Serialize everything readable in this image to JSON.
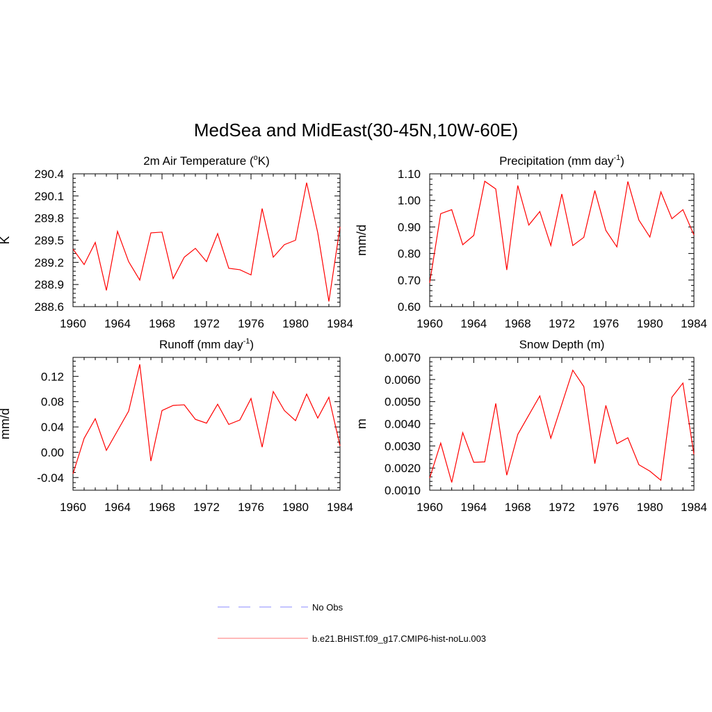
{
  "main_title": "MedSea and MidEast(30-45N,10W-60E)",
  "colors": {
    "model": "#ff0000",
    "obs": "#a0a0ff",
    "axis": "#000000"
  },
  "legend": {
    "items": [
      {
        "label": "No Obs",
        "style": "dashed",
        "color": "#a0a0ff"
      },
      {
        "label": "b.e21.BHIST.f09_g17.CMIP6-hist-noLu.003",
        "style": "solid",
        "color": "#ff0000"
      }
    ]
  },
  "chart_data": [
    {
      "type": "line",
      "title": "2m Air Temperature (°K)",
      "title_parts": {
        "pre": "2m Air Temperature (",
        "sup": "o",
        "post": "K)"
      },
      "ylabel": "K",
      "xlim": [
        1960,
        1984
      ],
      "ylim": [
        288.6,
        290.4
      ],
      "x_ticks": [
        "1960",
        "1964",
        "1968",
        "1972",
        "1976",
        "1980",
        "1984"
      ],
      "y_ticks": [
        "288.6",
        "288.9",
        "289.2",
        "289.5",
        "289.8",
        "290.1",
        "290.4"
      ],
      "series": [
        {
          "x": [
            1960,
            1961,
            1962,
            1963,
            1964,
            1965,
            1966,
            1967,
            1968,
            1969,
            1970,
            1971,
            1972,
            1973,
            1974,
            1975,
            1976,
            1977,
            1978,
            1979,
            1980,
            1981,
            1982,
            1983,
            1984
          ],
          "values": [
            289.38,
            289.17,
            289.47,
            288.82,
            289.62,
            289.21,
            288.96,
            289.6,
            289.61,
            288.98,
            289.27,
            289.39,
            289.21,
            289.59,
            289.12,
            289.1,
            289.03,
            289.93,
            289.27,
            289.44,
            289.5,
            290.28,
            289.6,
            288.67,
            289.68
          ]
        }
      ]
    },
    {
      "type": "line",
      "title": "Precipitation (mm day-1)",
      "title_parts": {
        "pre": "Precipitation (mm day",
        "sup": "-1",
        "post": ")"
      },
      "ylabel": "mm/d",
      "xlim": [
        1960,
        1984
      ],
      "ylim": [
        0.6,
        1.1
      ],
      "x_ticks": [
        "1960",
        "1964",
        "1968",
        "1972",
        "1976",
        "1980",
        "1984"
      ],
      "y_ticks": [
        "0.60",
        "0.70",
        "0.80",
        "0.90",
        "1.00",
        "1.10"
      ],
      "series": [
        {
          "x": [
            1960,
            1961,
            1962,
            1963,
            1964,
            1965,
            1966,
            1967,
            1968,
            1969,
            1970,
            1971,
            1972,
            1973,
            1974,
            1975,
            1976,
            1977,
            1978,
            1979,
            1980,
            1981,
            1982,
            1983,
            1984
          ],
          "values": [
            0.69,
            0.95,
            0.965,
            0.833,
            0.868,
            1.072,
            1.043,
            0.738,
            1.056,
            0.907,
            0.958,
            0.83,
            1.024,
            0.83,
            0.861,
            1.037,
            0.887,
            0.825,
            1.071,
            0.926,
            0.862,
            1.032,
            0.931,
            0.965,
            0.87
          ]
        }
      ]
    },
    {
      "type": "line",
      "title": "Runoff (mm day-1)",
      "title_parts": {
        "pre": "Runoff (mm day",
        "sup": "-1",
        "post": ")"
      },
      "ylabel": "mm/d",
      "xlim": [
        1960,
        1984
      ],
      "ylim": [
        -0.06,
        0.15
      ],
      "x_ticks": [
        "1960",
        "1964",
        "1968",
        "1972",
        "1976",
        "1980",
        "1984"
      ],
      "y_ticks": [
        "-0.04",
        "0.00",
        "0.04",
        "0.08",
        "0.12"
      ],
      "y_tick_values": [
        -0.04,
        0.0,
        0.04,
        0.08,
        0.12
      ],
      "series": [
        {
          "x": [
            1960,
            1961,
            1962,
            1963,
            1964,
            1965,
            1966,
            1967,
            1968,
            1969,
            1970,
            1971,
            1972,
            1973,
            1974,
            1975,
            1976,
            1977,
            1978,
            1979,
            1980,
            1981,
            1982,
            1983,
            1984
          ],
          "values": [
            -0.034,
            0.022,
            0.053,
            0.003,
            0.034,
            0.065,
            0.139,
            -0.014,
            0.066,
            0.074,
            0.075,
            0.052,
            0.046,
            0.076,
            0.044,
            0.051,
            0.085,
            0.008,
            0.096,
            0.066,
            0.05,
            0.092,
            0.054,
            0.087,
            0.01
          ]
        }
      ]
    },
    {
      "type": "line",
      "title": "Snow Depth (m)",
      "title_parts": {
        "pre": "Snow Depth (m)",
        "sup": "",
        "post": ""
      },
      "ylabel": "m",
      "xlim": [
        1960,
        1984
      ],
      "ylim": [
        0.001,
        0.007
      ],
      "x_ticks": [
        "1960",
        "1964",
        "1968",
        "1972",
        "1976",
        "1980",
        "1984"
      ],
      "y_ticks": [
        "0.0010",
        "0.0020",
        "0.0030",
        "0.0040",
        "0.0050",
        "0.0060",
        "0.0070"
      ],
      "series": [
        {
          "x": [
            1960,
            1961,
            1962,
            1963,
            1964,
            1965,
            1966,
            1967,
            1968,
            1969,
            1970,
            1971,
            1972,
            1973,
            1974,
            1975,
            1976,
            1977,
            1978,
            1979,
            1980,
            1981,
            1982,
            1983,
            1984
          ],
          "values": [
            0.00155,
            0.00313,
            0.00135,
            0.0036,
            0.00226,
            0.00228,
            0.00492,
            0.00168,
            0.00352,
            0.00439,
            0.00526,
            0.00335,
            0.00488,
            0.00642,
            0.00568,
            0.0022,
            0.00483,
            0.0031,
            0.00337,
            0.00215,
            0.00186,
            0.00145,
            0.0052,
            0.00584,
            0.00262
          ]
        }
      ]
    }
  ]
}
